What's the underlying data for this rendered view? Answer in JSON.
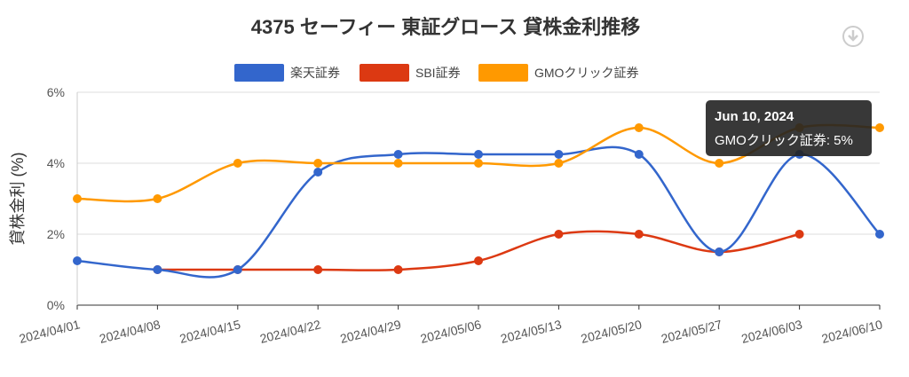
{
  "chart_data": {
    "type": "line",
    "title": "4375 セーフィー 東証グロース 貸株金利推移",
    "ylabel": "貸株金利 (%)",
    "xlabel": "",
    "ylim": [
      0,
      6
    ],
    "yticks": [
      "0%",
      "2%",
      "4%",
      "6%"
    ],
    "ytick_values": [
      0,
      2,
      4,
      6
    ],
    "grid": true,
    "legend": "top",
    "categories": [
      "2024/04/01",
      "2024/04/08",
      "2024/04/15",
      "2024/04/22",
      "2024/04/29",
      "2024/05/06",
      "2024/05/13",
      "2024/05/20",
      "2024/05/27",
      "2024/06/03",
      "2024/06/10"
    ],
    "series": [
      {
        "name": "楽天証券",
        "color": "#3366cc",
        "values": [
          1.25,
          1.0,
          1.0,
          3.75,
          4.25,
          4.25,
          4.25,
          4.25,
          1.5,
          4.25,
          2.0
        ]
      },
      {
        "name": "SBI証券",
        "color": "#dc3912",
        "values": [
          null,
          1.0,
          1.0,
          1.0,
          1.0,
          1.25,
          2.0,
          2.0,
          1.5,
          2.0,
          null
        ]
      },
      {
        "name": "GMOクリック証券",
        "color": "#ff9900",
        "values": [
          3,
          3,
          4,
          4,
          4,
          4,
          4,
          5,
          4,
          5,
          5
        ]
      }
    ],
    "tooltip": {
      "title": "Jun 10, 2024",
      "text": "GMOクリック証券: 5%"
    }
  },
  "download_icon": "download-icon"
}
